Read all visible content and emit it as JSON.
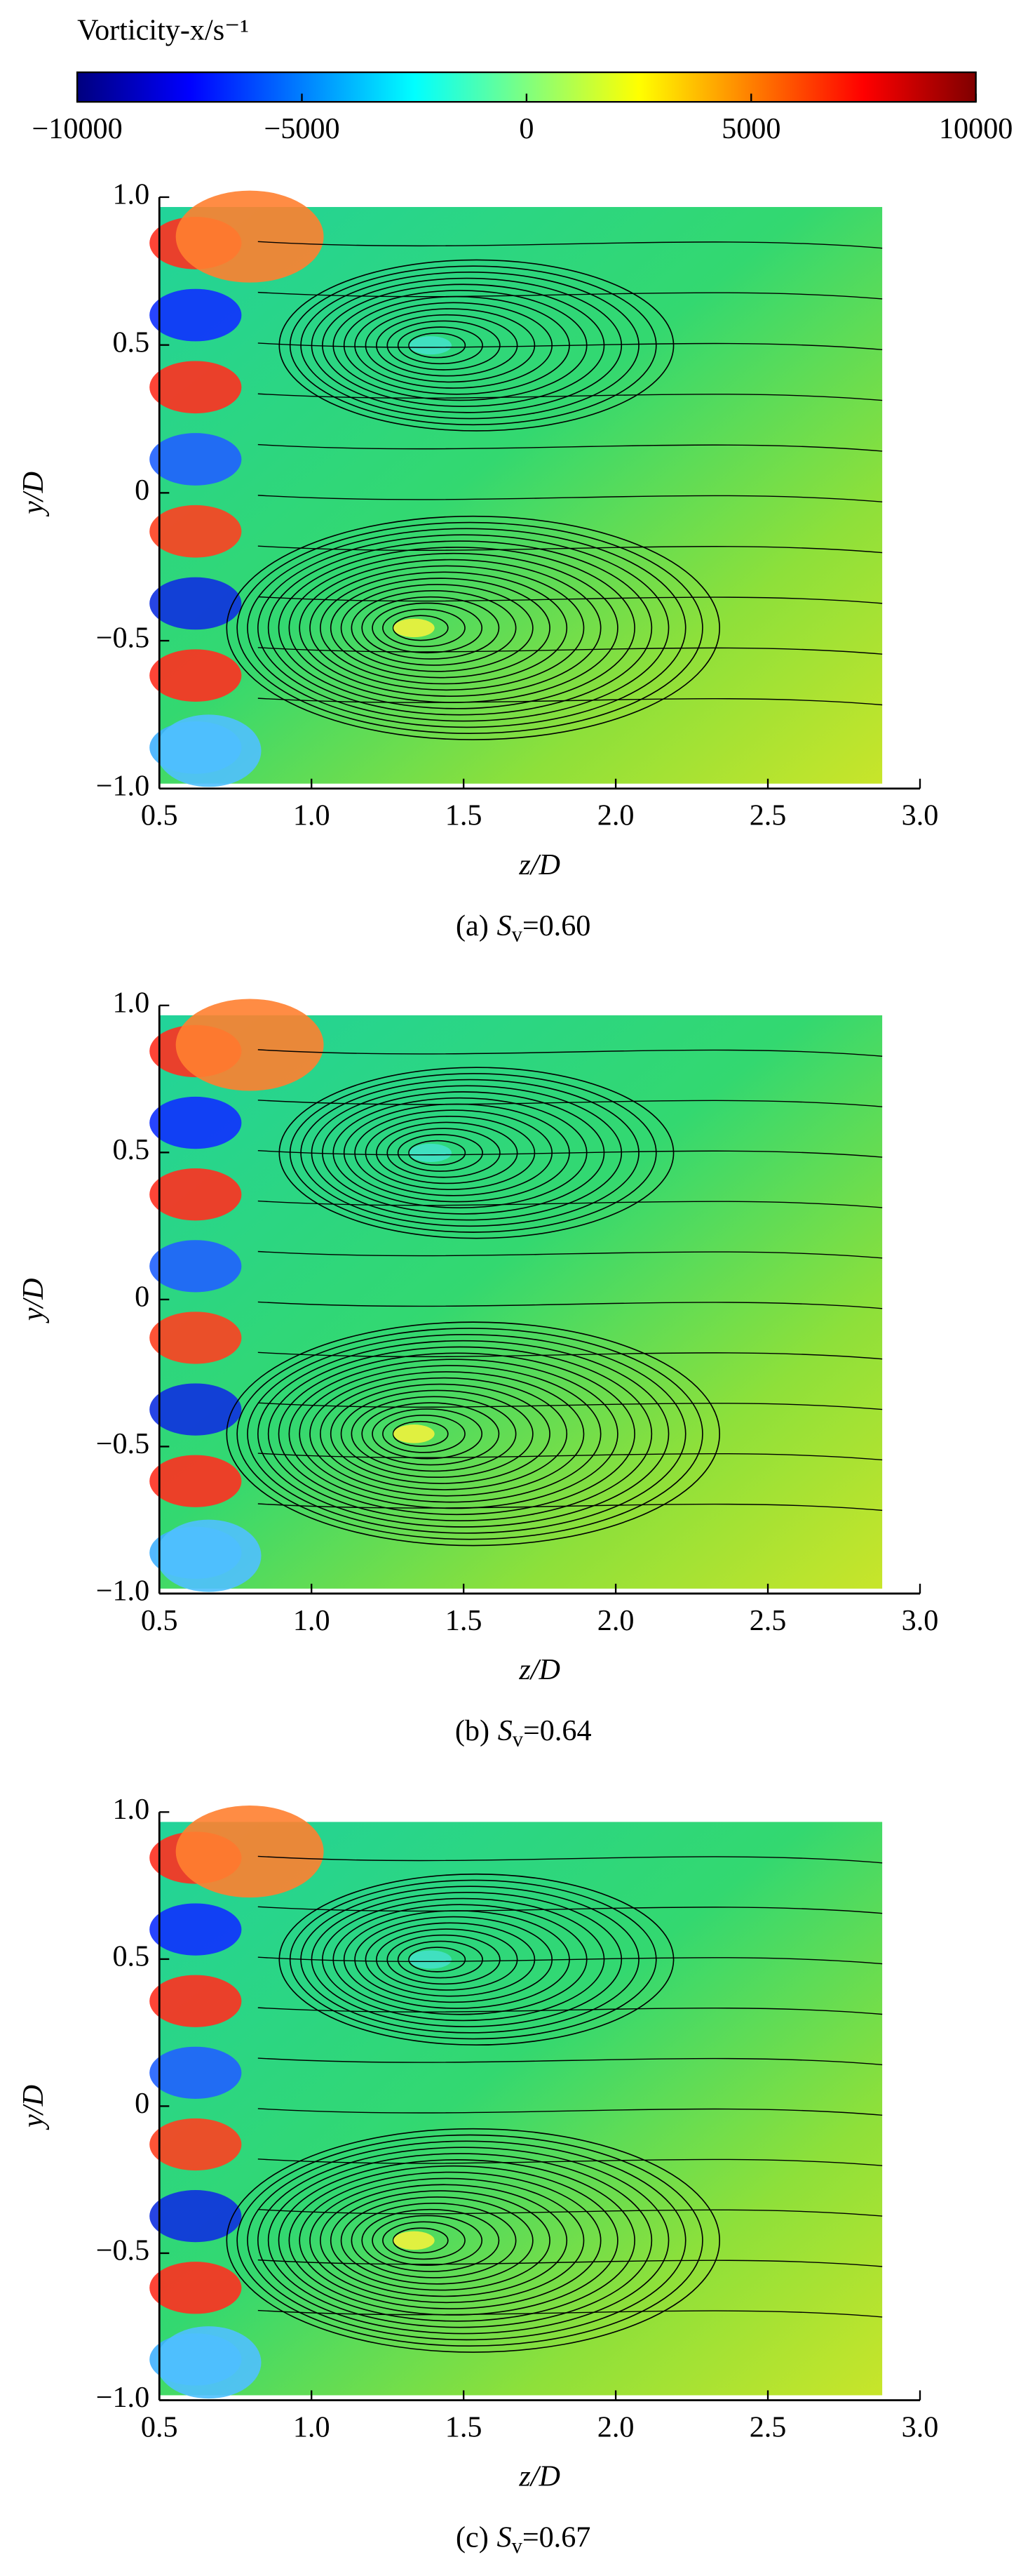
{
  "chart_data": [
    {
      "type": "colorbar",
      "label": "Vorticity-x/s⁻¹",
      "colors": [
        "#00007f",
        "#0000ff",
        "#007fff",
        "#00ffff",
        "#7fff7f",
        "#ffff00",
        "#ff7f00",
        "#ff0000",
        "#7f0000"
      ],
      "xlim": [
        -10000,
        10000
      ],
      "xticks": [
        {
          "value": -10000,
          "label": "−10000"
        },
        {
          "value": -5000,
          "label": "−5000"
        },
        0,
        5000,
        10000
      ]
    },
    {
      "type": "streamline",
      "xlabel": "z/D",
      "ylabel": "y/D",
      "caption": {
        "label": "(a)",
        "symbol": "S",
        "subscript": "v",
        "value": "=0.60"
      },
      "xlim": [
        0.5,
        3.0
      ],
      "ylim": [
        -1.0,
        1.0
      ],
      "xticks": [
        0.5,
        {
          "value": 1.0,
          "label": "1.0"
        },
        1.5,
        {
          "value": 2.0,
          "label": "2.0"
        },
        2.5,
        {
          "value": 3.0,
          "label": "3.0"
        }
      ],
      "yticks": [
        {
          "value": 1.0,
          "label": "1.0"
        },
        0.5,
        0,
        {
          "value": -0.5,
          "label": "−0.5"
        },
        {
          "value": -1.0,
          "label": "−1.0"
        }
      ]
    },
    {
      "type": "streamline",
      "xlabel": "z/D",
      "ylabel": "y/D",
      "caption": {
        "label": "(b)",
        "symbol": "S",
        "subscript": "v",
        "value": "=0.64"
      },
      "xlim": [
        0.5,
        3.0
      ],
      "ylim": [
        -1.0,
        1.0
      ],
      "xticks": [
        0.5,
        {
          "value": 1.0,
          "label": "1.0"
        },
        1.5,
        {
          "value": 2.0,
          "label": "2.0"
        },
        2.5,
        {
          "value": 3.0,
          "label": "3.0"
        }
      ],
      "yticks": [
        {
          "value": 1.0,
          "label": "1.0"
        },
        0.5,
        0,
        {
          "value": -0.5,
          "label": "−0.5"
        },
        {
          "value": -1.0,
          "label": "−1.0"
        }
      ]
    },
    {
      "type": "streamline",
      "xlabel": "z/D",
      "ylabel": "y/D",
      "caption": {
        "label": "(c)",
        "symbol": "S",
        "subscript": "v",
        "value": "=0.67"
      },
      "xlim": [
        0.5,
        3.0
      ],
      "ylim": [
        -1.0,
        1.0
      ],
      "xticks": [
        0.5,
        {
          "value": 1.0,
          "label": "1.0"
        },
        1.5,
        {
          "value": 2.0,
          "label": "2.0"
        },
        2.5,
        {
          "value": 3.0,
          "label": "3.0"
        }
      ],
      "yticks": [
        {
          "value": 1.0,
          "label": "1.0"
        },
        0.5,
        0,
        {
          "value": -0.5,
          "label": "−0.5"
        },
        {
          "value": -1.0,
          "label": "−1.0"
        }
      ]
    }
  ]
}
